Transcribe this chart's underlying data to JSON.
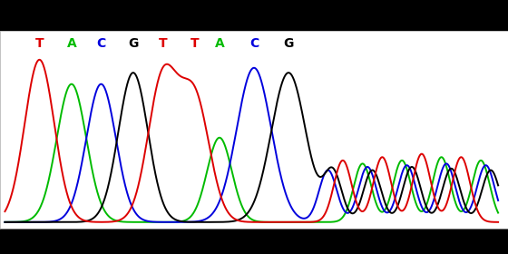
{
  "sequence": [
    "T",
    "A",
    "C",
    "G",
    "T",
    "T",
    "A",
    "C",
    "G"
  ],
  "letter_colors": {
    "T": "#dd0000",
    "A": "#00bb00",
    "C": "#0000dd",
    "G": "#000000"
  },
  "background_color": "#ffffff",
  "outer_background": "#000000",
  "figure_size": [
    5.6,
    2.8
  ],
  "dpi": 100
}
